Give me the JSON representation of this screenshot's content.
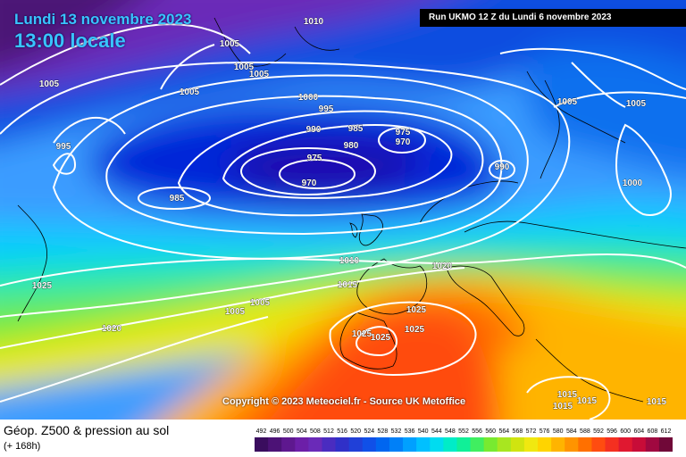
{
  "header": {
    "date": "Lundi 13 novembre 2023",
    "time": "13:00 locale",
    "run": "Run UKMO 12 Z du Lundi 6 novembre 2023"
  },
  "copyright": "Copyright © 2023 Meteociel.fr - Source UK Metoffice",
  "footer": {
    "title": "Géop. Z500 & pression au sol",
    "subtitle": "(+ 168h)"
  },
  "scale": {
    "ticks": [
      "492",
      "496",
      "500",
      "504",
      "508",
      "512",
      "516",
      "520",
      "524",
      "528",
      "532",
      "536",
      "540",
      "544",
      "548",
      "552",
      "556",
      "560",
      "564",
      "568",
      "572",
      "576",
      "580",
      "584",
      "588",
      "592",
      "596",
      "600",
      "604",
      "608",
      "612"
    ],
    "colors": [
      "#3a0d5e",
      "#4c1276",
      "#5e188f",
      "#6c1fa8",
      "#6a2ab8",
      "#4a2cc0",
      "#3030c8",
      "#2040d8",
      "#1050e8",
      "#0066f0",
      "#0080f8",
      "#00a0ff",
      "#00c0ff",
      "#00dcf0",
      "#00ecc8",
      "#10f098",
      "#40ee60",
      "#78ea30",
      "#a8e620",
      "#d0e410",
      "#f0e810",
      "#ffd400",
      "#ffb400",
      "#ff9400",
      "#ff7000",
      "#ff4c10",
      "#f43020",
      "#e01830",
      "#c80c38",
      "#a00840",
      "#700838"
    ]
  },
  "isobar_labels": [
    {
      "text": "1010"
    },
    {
      "text": "1005"
    },
    {
      "text": "1005"
    },
    {
      "text": "1005"
    },
    {
      "text": "1005"
    },
    {
      "text": "1005"
    },
    {
      "text": "1000"
    },
    {
      "text": "995"
    },
    {
      "text": "990"
    },
    {
      "text": "985"
    },
    {
      "text": "980"
    },
    {
      "text": "975"
    },
    {
      "text": "975"
    },
    {
      "text": "970"
    },
    {
      "text": "970"
    },
    {
      "text": "995"
    },
    {
      "text": "985"
    },
    {
      "text": "990"
    },
    {
      "text": "1005"
    },
    {
      "text": "1005"
    },
    {
      "text": "1000"
    },
    {
      "text": "1010"
    },
    {
      "text": "1020"
    },
    {
      "text": "1015"
    },
    {
      "text": "1005"
    },
    {
      "text": "1005"
    },
    {
      "text": "1025"
    },
    {
      "text": "1020"
    },
    {
      "text": "1025"
    },
    {
      "text": "1025"
    },
    {
      "text": "1025"
    },
    {
      "text": "1025"
    },
    {
      "text": "1015"
    },
    {
      "text": "1015"
    },
    {
      "text": "1015"
    },
    {
      "text": "1015"
    }
  ]
}
